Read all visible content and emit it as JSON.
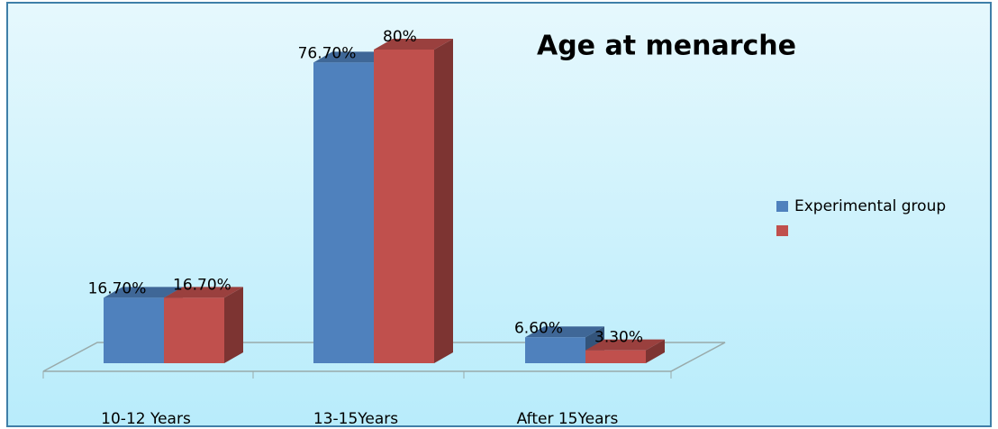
{
  "chart_data": {
    "type": "bar3d",
    "title": "Age at menarche",
    "categories": [
      "10-12 Years",
      "13-15Years",
      "After 15Years"
    ],
    "series": [
      {
        "name": "Experimental group",
        "color": "#4f81bd",
        "values": [
          16.7,
          76.7,
          6.6
        ],
        "value_labels": [
          "16.70%",
          "76.70%",
          "6.60%"
        ]
      },
      {
        "color": "#c0504d",
        "values": [
          16.7,
          80,
          3.3
        ],
        "value_labels": [
          "16.70%",
          "80%",
          "3.30%"
        ]
      }
    ],
    "ylim": [
      0,
      80
    ],
    "legend": "right"
  }
}
